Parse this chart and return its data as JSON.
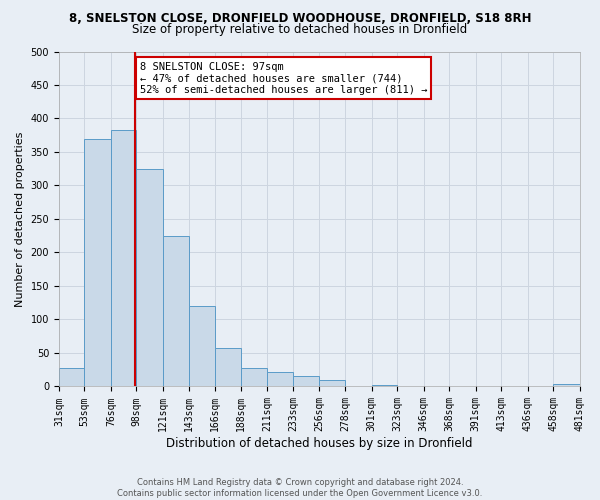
{
  "title_line1": "8, SNELSTON CLOSE, DRONFIELD WOODHOUSE, DRONFIELD, S18 8RH",
  "title_line2": "Size of property relative to detached houses in Dronfield",
  "xlabel": "Distribution of detached houses by size in Dronfield",
  "ylabel": "Number of detached properties",
  "bin_edges": [
    31,
    53,
    76,
    98,
    121,
    143,
    166,
    188,
    211,
    233,
    256,
    278,
    301,
    323,
    346,
    368,
    391,
    413,
    436,
    458,
    481
  ],
  "bar_heights": [
    27,
    370,
    383,
    325,
    225,
    120,
    58,
    27,
    22,
    16,
    10,
    0,
    2,
    0,
    1,
    0,
    0,
    1,
    0,
    3
  ],
  "bar_color": "#c9d9e8",
  "bar_edge_color": "#5a9bc8",
  "property_size": 97,
  "vline_color": "#cc0000",
  "annotation_line1": "8 SNELSTON CLOSE: 97sqm",
  "annotation_line2": "← 47% of detached houses are smaller (744)",
  "annotation_line3": "52% of semi-detached houses are larger (811) →",
  "annotation_box_color": "#ffffff",
  "annotation_box_edge": "#cc0000",
  "ylim": [
    0,
    500
  ],
  "yticks": [
    0,
    50,
    100,
    150,
    200,
    250,
    300,
    350,
    400,
    450,
    500
  ],
  "grid_color": "#cdd5e0",
  "background_color": "#e8eef5",
  "footer_line1": "Contains HM Land Registry data © Crown copyright and database right 2024.",
  "footer_line2": "Contains public sector information licensed under the Open Government Licence v3.0.",
  "title1_fontsize": 8.5,
  "title2_fontsize": 8.5,
  "xlabel_fontsize": 8.5,
  "ylabel_fontsize": 8.0,
  "tick_fontsize": 7.0,
  "annot_fontsize": 7.5,
  "footer_fontsize": 6.0
}
